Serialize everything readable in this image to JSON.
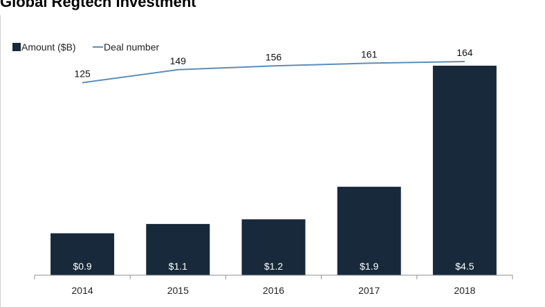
{
  "chart_data": {
    "type": "bar",
    "title": "Global Regtech Investment",
    "categories": [
      "2014",
      "2015",
      "2016",
      "2017",
      "2018"
    ],
    "series": [
      {
        "name": "Amount ($B)",
        "type": "bar",
        "values": [
          0.9,
          1.1,
          1.2,
          1.9,
          4.5
        ],
        "labels": [
          "$0.9",
          "$1.1",
          "$1.2",
          "$1.9",
          "$4.5"
        ],
        "color": "#17293a"
      },
      {
        "name": "Deal number",
        "type": "line",
        "values": [
          125,
          149,
          156,
          161,
          164
        ],
        "labels": [
          "125",
          "149",
          "156",
          "161",
          "164"
        ],
        "color": "#5b8db8"
      }
    ],
    "legend": "top-left"
  }
}
